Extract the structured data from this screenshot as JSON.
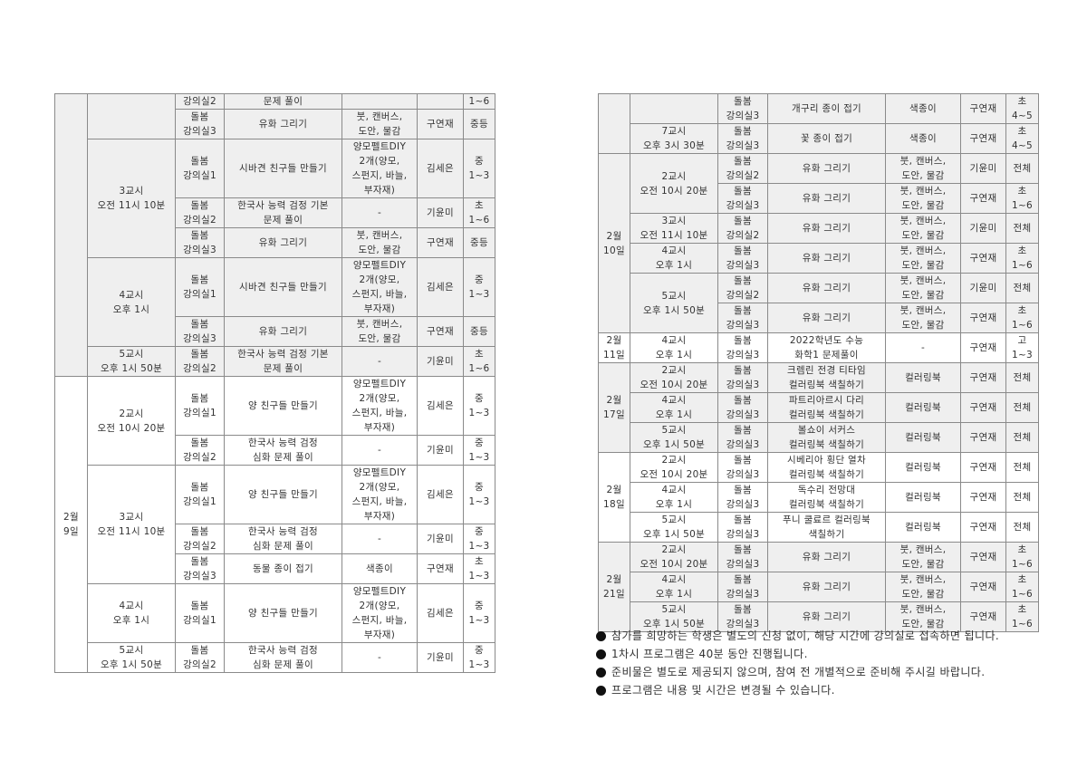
{
  "left_table": {
    "groups": [
      {
        "date": "",
        "shaded": true,
        "slots": [
          {
            "period": "",
            "rows": [
              {
                "room": "강의실2",
                "program": "문제 풀이",
                "materials": "",
                "teacher": "",
                "target": "1~6"
              },
              {
                "room": "돌봄\n강의실3",
                "program": "유화 그리기",
                "materials": "붓, 캔버스,\n도안, 물감",
                "teacher": "구연재",
                "target": "중등"
              }
            ]
          },
          {
            "period": "3교시\n오전 11시 10분",
            "rows": [
              {
                "room": "돌봄\n강의실1",
                "program": "시바견 친구들 만들기",
                "materials": "양모펠트DIY\n2개(양모,\n스펀지, 바늘,\n부자재)",
                "teacher": "김세은",
                "target": "중\n1~3"
              },
              {
                "room": "돌봄\n강의실2",
                "program": "한국사 능력 검정 기본\n문제 풀이",
                "materials": "-",
                "teacher": "기윤미",
                "target": "초\n1~6"
              },
              {
                "room": "돌봄\n강의실3",
                "program": "유화 그리기",
                "materials": "붓, 캔버스,\n도안, 물감",
                "teacher": "구연재",
                "target": "중등"
              }
            ]
          },
          {
            "period": "4교시\n오후 1시",
            "rows": [
              {
                "room": "돌봄\n강의실1",
                "program": "시바견 친구들 만들기",
                "materials": "양모펠트DIY\n2개(양모,\n스펀지, 바늘,\n부자재)",
                "teacher": "김세은",
                "target": "중\n1~3"
              },
              {
                "room": "돌봄\n강의실3",
                "program": "유화 그리기",
                "materials": "붓, 캔버스,\n도안, 물감",
                "teacher": "구연재",
                "target": "중등"
              }
            ]
          },
          {
            "period": "5교시\n오후 1시 50분",
            "rows": [
              {
                "room": "돌봄\n강의실2",
                "program": "한국사 능력 검정 기본\n문제 풀이",
                "materials": "-",
                "teacher": "기윤미",
                "target": "초\n1~6"
              }
            ]
          }
        ]
      },
      {
        "date": "2월\n9일",
        "shaded": false,
        "slots": [
          {
            "period": "2교시\n오전 10시 20분",
            "rows": [
              {
                "room": "돌봄\n강의실1",
                "program": "양 친구들 만들기",
                "materials": "양모펠트DIY\n2개(양모,\n스펀지, 바늘,\n부자재)",
                "teacher": "김세은",
                "target": "중\n1~3"
              },
              {
                "room": "돌봄\n강의실2",
                "program": "한국사 능력 검정\n심화 문제 풀이",
                "materials": "-",
                "teacher": "기윤미",
                "target": "중\n1~3"
              }
            ]
          },
          {
            "period": "3교시\n오전 11시 10분",
            "rows": [
              {
                "room": "돌봄\n강의실1",
                "program": "양 친구들 만들기",
                "materials": "양모펠트DIY\n2개(양모,\n스펀지, 바늘,\n부자재)",
                "teacher": "김세은",
                "target": "중\n1~3"
              },
              {
                "room": "돌봄\n강의실2",
                "program": "한국사 능력 검정\n심화 문제 풀이",
                "materials": "-",
                "teacher": "기윤미",
                "target": "중\n1~3"
              },
              {
                "room": "돌봄\n강의실3",
                "program": "동물 종이 접기",
                "materials": "색종이",
                "teacher": "구연재",
                "target": "초\n1~3"
              }
            ]
          },
          {
            "period": "4교시\n오후 1시",
            "rows": [
              {
                "room": "돌봄\n강의실1",
                "program": "양 친구들 만들기",
                "materials": "양모펠트DIY\n2개(양모,\n스펀지, 바늘,\n부자재)",
                "teacher": "김세은",
                "target": "중\n1~3"
              }
            ]
          },
          {
            "period": "5교시\n오후 1시 50분",
            "rows": [
              {
                "room": "돌봄\n강의실2",
                "program": "한국사 능력 검정\n심화 문제 풀이",
                "materials": "-",
                "teacher": "기윤미",
                "target": "중\n1~3"
              }
            ]
          }
        ]
      }
    ]
  },
  "right_table": {
    "groups": [
      {
        "date": "",
        "shaded": true,
        "slots": [
          {
            "period": "",
            "rows": [
              {
                "room": "돌봄\n강의실3",
                "program": "개구리 종이 접기",
                "materials": "색종이",
                "teacher": "구연재",
                "target": "초\n4~5"
              }
            ]
          },
          {
            "period": "7교시\n오후 3시 30분",
            "rows": [
              {
                "room": "돌봄\n강의실3",
                "program": "꽃 종이 접기",
                "materials": "색종이",
                "teacher": "구연재",
                "target": "초\n4~5"
              }
            ]
          }
        ]
      },
      {
        "date": "2월\n10일",
        "shaded": true,
        "slots": [
          {
            "period": "2교시\n오전 10시 20분",
            "rows": [
              {
                "room": "돌봄\n강의실2",
                "program": "유화 그리기",
                "materials": "붓, 캔버스,\n도안, 물감",
                "teacher": "기윤미",
                "target": "전체"
              },
              {
                "room": "돌봄\n강의실3",
                "program": "유화 그리기",
                "materials": "붓, 캔버스,\n도안, 물감",
                "teacher": "구연재",
                "target": "초\n1~6"
              }
            ]
          },
          {
            "period": "3교시\n오전 11시 10분",
            "rows": [
              {
                "room": "돌봄\n강의실2",
                "program": "유화 그리기",
                "materials": "붓, 캔버스,\n도안, 물감",
                "teacher": "기윤미",
                "target": "전체"
              }
            ]
          },
          {
            "period": "4교시\n오후 1시",
            "rows": [
              {
                "room": "돌봄\n강의실3",
                "program": "유화 그리기",
                "materials": "붓, 캔버스,\n도안, 물감",
                "teacher": "구연재",
                "target": "초\n1~6"
              }
            ]
          },
          {
            "period": "5교시\n오후 1시 50분",
            "rows": [
              {
                "room": "돌봄\n강의실2",
                "program": "유화 그리기",
                "materials": "붓, 캔버스,\n도안, 물감",
                "teacher": "기윤미",
                "target": "전체"
              },
              {
                "room": "돌봄\n강의실3",
                "program": "유화 그리기",
                "materials": "붓, 캔버스,\n도안, 물감",
                "teacher": "구연재",
                "target": "초\n1~6"
              }
            ]
          }
        ]
      },
      {
        "date": "2월\n11일",
        "shaded": false,
        "slots": [
          {
            "period": "4교시\n오후 1시",
            "rows": [
              {
                "room": "돌봄\n강의실3",
                "program": "2022학년도 수능\n화학1 문제풀이",
                "materials": "-",
                "teacher": "구연재",
                "target": "고\n1~3"
              }
            ]
          }
        ]
      },
      {
        "date": "2월\n17일",
        "shaded": true,
        "slots": [
          {
            "period": "2교시\n오전 10시 20분",
            "rows": [
              {
                "room": "돌봄\n강의실3",
                "program": "크렘린 전경 티타임\n컬러링북 색칠하기",
                "materials": "컬러링북",
                "teacher": "구연재",
                "target": "전체"
              }
            ]
          },
          {
            "period": "4교시\n오후 1시",
            "rows": [
              {
                "room": "돌봄\n강의실3",
                "program": "파트리아르시 다리\n컬러링북 색칠하기",
                "materials": "컬러링북",
                "teacher": "구연재",
                "target": "전체"
              }
            ]
          },
          {
            "period": "5교시\n오후 1시 50분",
            "rows": [
              {
                "room": "돌봄\n강의실3",
                "program": "볼쇼이 서커스\n컬러링북 색칠하기",
                "materials": "컬러링북",
                "teacher": "구연재",
                "target": "전체"
              }
            ]
          }
        ]
      },
      {
        "date": "2월\n18일",
        "shaded": false,
        "slots": [
          {
            "period": "2교시\n오전 10시 20분",
            "rows": [
              {
                "room": "돌봄\n강의실3",
                "program": "시베리아 횡단 열차\n컬러링북 색칠하기",
                "materials": "컬러링북",
                "teacher": "구연재",
                "target": "전체"
              }
            ]
          },
          {
            "period": "4교시\n오후 1시",
            "rows": [
              {
                "room": "돌봄\n강의실3",
                "program": "독수리 전망대\n컬러링북 색칠하기",
                "materials": "컬러링북",
                "teacher": "구연재",
                "target": "전체"
              }
            ]
          },
          {
            "period": "5교시\n오후 1시 50분",
            "rows": [
              {
                "room": "돌봄\n강의실3",
                "program": "푸니 쿨료르 컬러링북\n색칠하기",
                "materials": "컬러링북",
                "teacher": "구연재",
                "target": "전체"
              }
            ]
          }
        ]
      },
      {
        "date": "2월\n21일",
        "shaded": true,
        "slots": [
          {
            "period": "2교시\n오전 10시 20분",
            "rows": [
              {
                "room": "돌봄\n강의실3",
                "program": "유화 그리기",
                "materials": "붓, 캔버스,\n도안, 물감",
                "teacher": "구연재",
                "target": "초\n1~6"
              }
            ]
          },
          {
            "period": "4교시\n오후 1시",
            "rows": [
              {
                "room": "돌봄\n강의실3",
                "program": "유화 그리기",
                "materials": "붓, 캔버스,\n도안, 물감",
                "teacher": "구연재",
                "target": "초\n1~6"
              }
            ]
          },
          {
            "period": "5교시\n오후 1시 50분",
            "rows": [
              {
                "room": "돌봄\n강의실3",
                "program": "유화 그리기",
                "materials": "붓, 캔버스,\n도안, 물감",
                "teacher": "구연재",
                "target": "초\n1~6"
              }
            ]
          }
        ]
      }
    ]
  },
  "notes": [
    "참가를 희망하는 학생은 별도의 신청 없이, 해당 시간에 강의실로 접속하면 됩니다.",
    "1차시 프로그램은 40분 동안 진행됩니다.",
    "준비물은 별도로 제공되지 않으며, 참여 전 개별적으로 준비해 주시길 바랍니다.",
    "프로그램은 내용 및 시간은 변경될 수 있습니다."
  ],
  "colors": {
    "shade": "#efefef",
    "border": "#8a8a8a",
    "text": "#333333"
  }
}
